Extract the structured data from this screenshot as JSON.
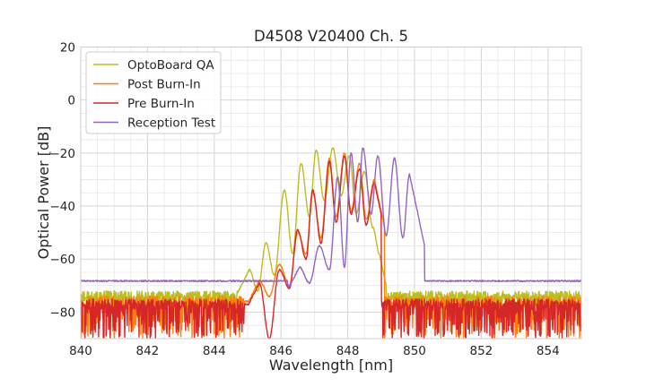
{
  "chart_data": {
    "type": "line",
    "title": "D4508 V20400 Ch. 5",
    "xlabel": "Wavelength [nm]",
    "ylabel": "Optical Power [dB]",
    "xlim": [
      840,
      855
    ],
    "ylim": [
      -90,
      20
    ],
    "xticks": [
      840,
      842,
      844,
      846,
      848,
      850,
      852,
      854
    ],
    "xtick_labels": [
      "840",
      "842",
      "844",
      "846",
      "848",
      "850",
      "852",
      "854"
    ],
    "yticks": [
      20,
      0,
      -20,
      -40,
      -60,
      -80
    ],
    "ytick_labels": [
      "20",
      "0",
      "−20",
      "−40",
      "−60",
      "−80"
    ],
    "grid": true,
    "legend_position": "upper-left",
    "series": [
      {
        "name": "OptoBoard QA",
        "color": "#bcbd22",
        "noise_floor": [
          -79,
          -72
        ],
        "peaks": [
          [
            845.05,
            -64
          ],
          [
            845.55,
            -54
          ],
          [
            846.1,
            -34
          ],
          [
            846.6,
            -24
          ],
          [
            847.05,
            -19
          ],
          [
            847.55,
            -18
          ],
          [
            848.05,
            -21
          ],
          [
            848.5,
            -27
          ],
          [
            848.95,
            -58
          ]
        ],
        "valleys": [
          [
            845.3,
            -72
          ],
          [
            845.8,
            -66
          ],
          [
            846.35,
            -58
          ],
          [
            846.85,
            -44
          ],
          [
            847.3,
            -38
          ],
          [
            847.8,
            -36
          ],
          [
            848.25,
            -43
          ],
          [
            848.75,
            -48
          ]
        ],
        "band": [
          844.7,
          849.15
        ]
      },
      {
        "name": "Post Burn-In",
        "color": "#ff7f0e",
        "noise_floor": [
          -90,
          -74
        ],
        "peaks": [
          [
            845.35,
            -68
          ],
          [
            845.95,
            -62
          ],
          [
            846.5,
            -50
          ],
          [
            846.95,
            -35
          ],
          [
            847.45,
            -22
          ],
          [
            847.9,
            -20
          ],
          [
            848.35,
            -24
          ],
          [
            848.8,
            -30
          ]
        ],
        "valleys": [
          [
            845.65,
            -74
          ],
          [
            846.25,
            -70
          ],
          [
            846.75,
            -58
          ],
          [
            847.2,
            -52
          ],
          [
            847.65,
            -44
          ],
          [
            848.1,
            -42
          ],
          [
            848.55,
            -45
          ]
        ],
        "band": [
          844.9,
          849.1
        ]
      },
      {
        "name": "Pre Burn-In",
        "color": "#d62728",
        "noise_floor": [
          -90,
          -75
        ],
        "peaks": [
          [
            845.35,
            -69
          ],
          [
            845.95,
            -64
          ],
          [
            846.5,
            -49
          ],
          [
            846.95,
            -34
          ],
          [
            847.45,
            -23
          ],
          [
            847.9,
            -21
          ],
          [
            848.35,
            -26
          ],
          [
            848.8,
            -31
          ]
        ],
        "valleys": [
          [
            845.65,
            -90
          ],
          [
            846.25,
            -71
          ],
          [
            846.75,
            -60
          ],
          [
            847.2,
            -54
          ],
          [
            847.65,
            -46
          ],
          [
            848.1,
            -43
          ],
          [
            848.55,
            -47
          ]
        ],
        "band": [
          844.9,
          849.0
        ]
      },
      {
        "name": "Reception Test",
        "color": "#9467bd",
        "noise_floor": [
          -68.5,
          -68
        ],
        "peaks": [
          [
            846.55,
            -63
          ],
          [
            847.15,
            -55
          ],
          [
            847.7,
            -29
          ],
          [
            848.1,
            -20
          ],
          [
            848.45,
            -18
          ],
          [
            848.9,
            -21
          ],
          [
            849.4,
            -22
          ],
          [
            849.85,
            -28
          ]
        ],
        "valleys": [
          [
            846.85,
            -69
          ],
          [
            847.45,
            -64
          ],
          [
            847.9,
            -63
          ],
          [
            848.3,
            -46
          ],
          [
            848.7,
            -43
          ],
          [
            849.15,
            -51
          ],
          [
            849.65,
            -52
          ]
        ],
        "band": [
          846.2,
          850.3
        ]
      }
    ]
  }
}
